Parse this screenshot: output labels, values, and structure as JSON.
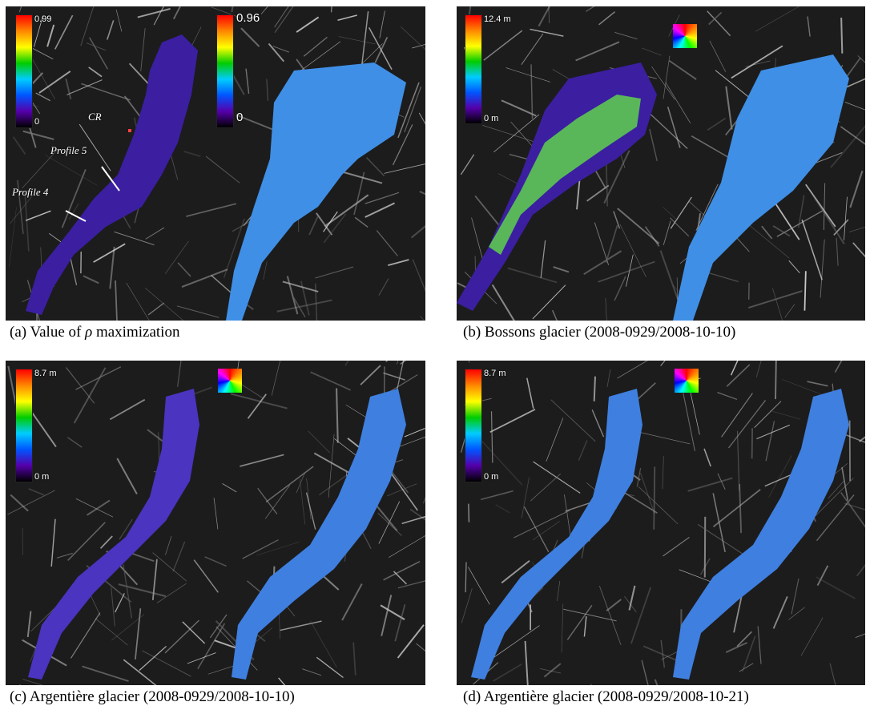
{
  "panels": {
    "a": {
      "caption_prefix": "(a) Value of ",
      "caption_symbol": "ρ",
      "caption_suffix": " maximization",
      "left_colorbar": {
        "max": "0.99",
        "min": "0"
      },
      "right_colorbar": {
        "max": "0.96",
        "min": "0"
      },
      "annotations": {
        "cr": "CR",
        "profile5": "Profile 5",
        "profile4": "Profile 4"
      }
    },
    "b": {
      "caption": "(b) Bossons glacier (2008-0929/2008-10-10)",
      "colorbar": {
        "max": "12.4 m",
        "min": "0 m"
      }
    },
    "c": {
      "caption": "(c) Argentière glacier (2008-0929/2008-10-10)",
      "colorbar": {
        "max": "8.7 m",
        "min": "0 m"
      }
    },
    "d": {
      "caption": "(d) Argentière glacier (2008-0929/2008-10-21)",
      "colorbar": {
        "max": "8.7 m",
        "min": "0 m"
      }
    }
  },
  "colors": {
    "rainbow": [
      "#ff0000",
      "#ff8800",
      "#ffff00",
      "#00cc00",
      "#00ccff",
      "#0055ff",
      "#5500aa",
      "#000000"
    ],
    "glacier_blue": "#3f7fe0",
    "glacier_purple": "#4a2aa8"
  }
}
